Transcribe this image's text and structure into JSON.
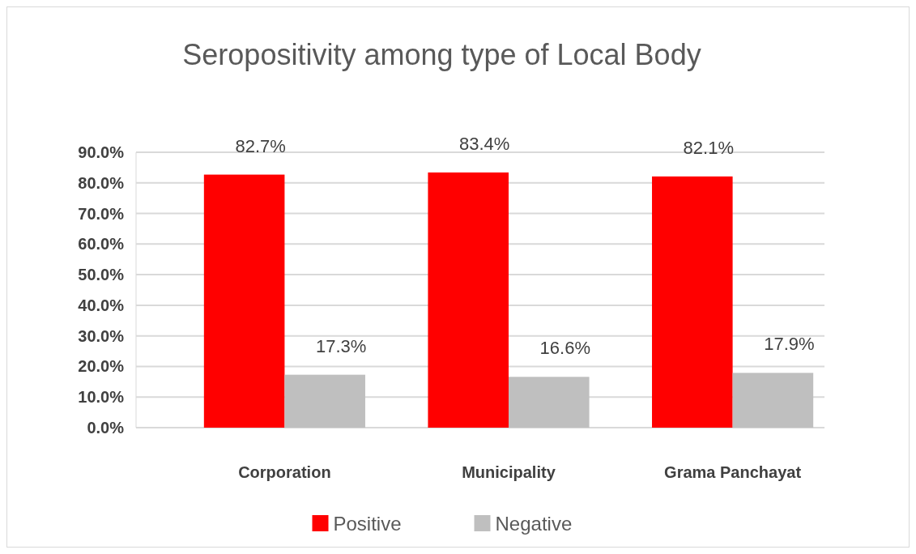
{
  "chart_data": {
    "type": "bar",
    "title": "Seropositivity among type of Local Body",
    "categories": [
      "Corporation",
      "Municipality",
      "Grama Panchayat"
    ],
    "series": [
      {
        "name": "Positive",
        "color": "#ff0000",
        "values": [
          82.7,
          83.4,
          82.1
        ],
        "value_labels": [
          "82.7%",
          "83.4%",
          "82.1%"
        ]
      },
      {
        "name": "Negative",
        "color": "#bfbfbf",
        "values": [
          17.3,
          16.6,
          17.9
        ],
        "value_labels": [
          "17.3%",
          "16.6%",
          "17.9%"
        ]
      }
    ],
    "ylim": [
      0,
      90
    ],
    "yticks": [
      {
        "value": 0,
        "label": "0.0%"
      },
      {
        "value": 10,
        "label": "10.0%"
      },
      {
        "value": 20,
        "label": "20.0%"
      },
      {
        "value": 30,
        "label": "30.0%"
      },
      {
        "value": 40,
        "label": "40.0%"
      },
      {
        "value": 50,
        "label": "50.0%"
      },
      {
        "value": 60,
        "label": "60.0%"
      },
      {
        "value": 70,
        "label": "70.0%"
      },
      {
        "value": 80,
        "label": "80.0%"
      },
      {
        "value": 90,
        "label": "90.0%"
      }
    ],
    "grid": "y",
    "legend": "bottom"
  }
}
